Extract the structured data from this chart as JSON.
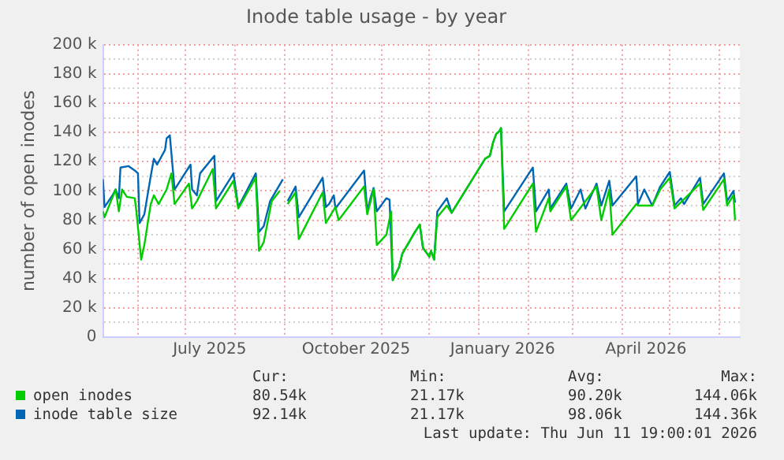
{
  "chart_data": {
    "type": "line",
    "title": "Inode table usage - by year",
    "ylabel": "number of open inodes",
    "xlim": [
      "2025-05-10",
      "2026-06-14"
    ],
    "xticks": [
      {
        "value": "2025-06-01",
        "label": null
      },
      {
        "value": "2025-07-01",
        "label": null
      },
      {
        "value": "2025-07-16",
        "label": "July 2025"
      },
      {
        "value": "2025-08-01",
        "label": null
      },
      {
        "value": "2025-09-01",
        "label": null
      },
      {
        "value": "2025-10-01",
        "label": null
      },
      {
        "value": "2025-10-16",
        "label": "October 2025"
      },
      {
        "value": "2025-11-01",
        "label": null
      },
      {
        "value": "2025-12-01",
        "label": null
      },
      {
        "value": "2026-01-01",
        "label": null
      },
      {
        "value": "2026-01-16",
        "label": "January 2026"
      },
      {
        "value": "2026-02-01",
        "label": null
      },
      {
        "value": "2026-03-01",
        "label": null
      },
      {
        "value": "2026-04-01",
        "label": null
      },
      {
        "value": "2026-04-16",
        "label": "April 2026"
      },
      {
        "value": "2026-05-01",
        "label": null
      },
      {
        "value": "2026-06-01",
        "label": null
      }
    ],
    "ylim": [
      0,
      200000
    ],
    "yticks": [
      0,
      {
        "value": 10000,
        "label": null
      },
      {
        "value": 20000,
        "label": "20 k"
      },
      {
        "value": 30000,
        "label": null
      },
      {
        "value": 40000,
        "label": "40 k"
      },
      {
        "value": 50000,
        "label": null
      },
      {
        "value": 60000,
        "label": "60 k"
      },
      {
        "value": 70000,
        "label": null
      },
      {
        "value": 80000,
        "label": "80 k"
      },
      {
        "value": 90000,
        "label": null
      },
      {
        "value": 100000,
        "label": "100 k"
      },
      {
        "value": 110000,
        "label": null
      },
      {
        "value": 120000,
        "label": "120 k"
      },
      {
        "value": 130000,
        "label": null
      },
      {
        "value": 140000,
        "label": "140 k"
      },
      {
        "value": 150000,
        "label": null
      },
      {
        "value": 160000,
        "label": "160 k"
      },
      {
        "value": 170000,
        "label": null
      },
      {
        "value": 180000,
        "label": "180 k"
      },
      {
        "value": 190000,
        "label": null
      },
      {
        "value": 200000,
        "label": "200 k"
      }
    ],
    "grid": true,
    "legend": "bottom",
    "marker": "none",
    "line_style": "solid",
    "series": [
      {
        "name": "inode table size",
        "color": "#0066b3",
        "x": [
          "2025-05-10",
          "2025-05-11",
          "2025-05-16",
          "2025-05-18",
          "2025-05-20",
          "2025-05-21",
          "2025-05-26",
          "2025-05-30",
          "2025-06-01",
          "2025-06-02",
          "2025-06-05",
          "2025-06-09",
          "2025-06-11",
          "2025-06-13",
          "2025-06-18",
          "2025-06-19",
          "2025-06-21",
          "2025-06-24",
          "2025-07-04",
          "2025-07-05",
          "2025-07-08",
          "2025-07-10",
          "2025-07-19",
          "2025-07-20",
          "2025-07-31",
          "2025-08-03",
          "2025-08-14",
          "2025-08-16",
          "2025-08-19",
          "2025-08-23",
          "2025-08-31",
          "2025-09-01",
          "2025-09-03",
          "2025-09-08",
          "2025-09-10",
          "2025-09-25",
          "2025-09-27",
          "2025-09-29",
          "2025-10-02",
          "2025-10-03",
          "2025-10-21",
          "2025-10-23",
          "2025-10-25",
          "2025-10-27",
          "2025-10-29",
          "2025-11-04",
          "2025-11-06",
          "2025-11-08",
          "2025-11-12",
          "2025-11-14",
          "2025-11-22",
          "2025-11-25",
          "2025-11-27",
          "2025-12-01",
          "2025-12-02",
          "2025-12-04",
          "2025-12-06",
          "2025-12-12",
          "2025-12-15",
          "2026-01-05",
          "2026-01-08",
          "2026-01-10",
          "2026-01-12",
          "2026-01-14",
          "2026-01-15",
          "2026-01-17",
          "2026-02-04",
          "2026-02-06",
          "2026-02-14",
          "2026-02-15",
          "2026-02-25",
          "2026-02-28",
          "2026-03-06",
          "2026-03-09",
          "2026-03-16",
          "2026-03-19",
          "2026-03-24",
          "2026-03-26",
          "2026-04-10",
          "2026-04-11",
          "2026-04-15",
          "2026-04-20",
          "2026-04-25",
          "2026-05-01",
          "2026-05-04",
          "2026-05-08",
          "2026-05-10",
          "2026-05-20",
          "2026-05-22",
          "2026-06-04",
          "2026-06-06",
          "2026-06-10",
          "2026-06-11"
        ],
        "values": [
          108000,
          89000,
          97000,
          101000,
          95000,
          116000,
          117000,
          114000,
          112000,
          78000,
          84000,
          110000,
          122000,
          118000,
          128000,
          136000,
          138000,
          101000,
          118000,
          101000,
          97000,
          112000,
          124000,
          93000,
          112000,
          89000,
          112000,
          72000,
          76000,
          93000,
          108000,
          null,
          93000,
          103000,
          82000,
          109000,
          89000,
          91000,
          97000,
          88000,
          114000,
          86000,
          95000,
          102000,
          86000,
          95000,
          94000,
          39000,
          48000,
          57000,
          72000,
          77000,
          61000,
          55000,
          59000,
          53000,
          86000,
          95000,
          85000,
          122000,
          124000,
          133000,
          139000,
          141000,
          143000,
          86000,
          116000,
          86000,
          101000,
          88000,
          105000,
          88000,
          101000,
          88000,
          105000,
          90000,
          107000,
          90000,
          110000,
          91000,
          101000,
          90000,
          103000,
          113000,
          90000,
          95000,
          91000,
          109000,
          91000,
          112000,
          93000,
          100000,
          92000
        ]
      },
      {
        "name": "open inodes",
        "color": "#00cc00",
        "x": [
          "2025-05-10",
          "2025-05-11",
          "2025-05-15",
          "2025-05-18",
          "2025-05-20",
          "2025-05-22",
          "2025-05-25",
          "2025-05-30",
          "2025-05-31",
          "2025-06-03",
          "2025-06-05",
          "2025-06-09",
          "2025-06-11",
          "2025-06-14",
          "2025-06-19",
          "2025-06-22",
          "2025-06-24",
          "2025-07-03",
          "2025-07-05",
          "2025-07-08",
          "2025-07-18",
          "2025-07-20",
          "2025-07-31",
          "2025-08-03",
          "2025-08-14",
          "2025-08-16",
          "2025-08-19",
          "2025-08-24",
          "2025-08-29",
          "2025-09-01",
          "2025-09-03",
          "2025-09-08",
          "2025-09-10",
          "2025-09-25",
          "2025-09-27",
          "2025-10-03",
          "2025-10-05",
          "2025-10-21",
          "2025-10-23",
          "2025-10-27",
          "2025-10-29",
          "2025-11-04",
          "2025-11-07",
          "2025-11-08",
          "2025-11-12",
          "2025-11-14",
          "2025-11-22",
          "2025-11-25",
          "2025-11-27",
          "2025-12-01",
          "2025-12-02",
          "2025-12-04",
          "2025-12-06",
          "2025-12-12",
          "2025-12-15",
          "2026-01-05",
          "2026-01-08",
          "2026-01-10",
          "2026-01-12",
          "2026-01-14",
          "2026-01-15",
          "2026-01-17",
          "2026-02-04",
          "2026-02-06",
          "2026-02-14",
          "2026-02-15",
          "2026-02-25",
          "2026-02-28",
          "2026-03-16",
          "2026-03-19",
          "2026-03-24",
          "2026-03-26",
          "2026-04-10",
          "2026-04-11",
          "2026-04-20",
          "2026-04-25",
          "2026-05-01",
          "2026-05-04",
          "2026-05-20",
          "2026-05-22",
          "2026-06-04",
          "2026-06-06",
          "2026-06-10",
          "2026-06-11"
        ],
        "values": [
          86000,
          82000,
          93000,
          101000,
          86000,
          101000,
          96000,
          95000,
          86000,
          53000,
          63000,
          91000,
          97000,
          91000,
          101000,
          112000,
          91000,
          105000,
          88000,
          93000,
          115000,
          88000,
          107000,
          88000,
          109000,
          59000,
          65000,
          93000,
          100000,
          null,
          91000,
          99000,
          67000,
          99000,
          78000,
          89000,
          80000,
          103000,
          84000,
          101000,
          63000,
          70000,
          86000,
          39000,
          48000,
          57000,
          72000,
          77000,
          61000,
          55000,
          59000,
          53000,
          82000,
          90000,
          85000,
          122000,
          124000,
          133000,
          139000,
          141000,
          143000,
          74000,
          105000,
          72000,
          95000,
          86000,
          103000,
          80000,
          103000,
          80000,
          101000,
          70000,
          91000,
          90000,
          90000,
          101000,
          109000,
          88000,
          105000,
          87000,
          108000,
          90000,
          97000,
          80000
        ]
      }
    ],
    "annotations": [
      "Cur:",
      "Min:",
      "Avg:",
      "Max:",
      "80.54k",
      "21.17k",
      "90.20k",
      "144.06k",
      "92.14k",
      "21.17k",
      "98.06k",
      "144.36k",
      "Last update: Thu Jun 11 19:00:01 2026"
    ]
  }
}
